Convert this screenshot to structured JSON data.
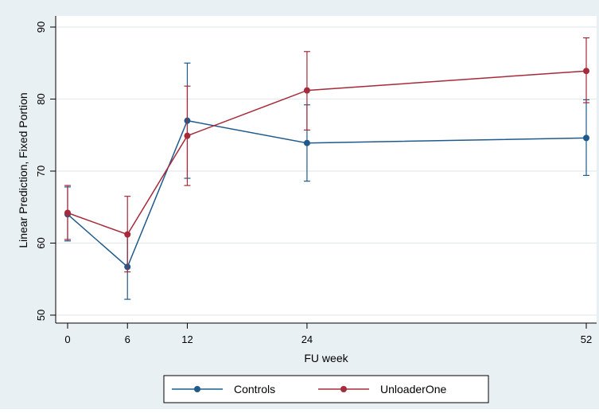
{
  "chart_data": {
    "type": "line",
    "title": "",
    "xlabel": "FU week",
    "ylabel": "Linear Prediction, Fixed Portion",
    "x": [
      0,
      6,
      12,
      24,
      52
    ],
    "x_ticks": [
      0,
      6,
      12,
      24,
      52
    ],
    "y_ticks": [
      50,
      60,
      70,
      80,
      90
    ],
    "xlim": [
      0,
      52
    ],
    "ylim": [
      50,
      90
    ],
    "grid": "horizontal",
    "legend_position": "bottom",
    "series": [
      {
        "name": "Controls",
        "color": "#1f5a8c",
        "values": [
          64.0,
          56.7,
          77.0,
          73.9,
          74.6
        ],
        "ci_low": [
          60.3,
          52.2,
          69.0,
          68.6,
          69.4
        ],
        "ci_high": [
          67.8,
          61.3,
          85.0,
          79.2,
          79.9
        ]
      },
      {
        "name": "UnloaderOne",
        "color": "#a52a3a",
        "values": [
          64.2,
          61.2,
          74.9,
          81.2,
          83.9
        ],
        "ci_low": [
          60.5,
          56.0,
          68.0,
          75.7,
          79.5
        ],
        "ci_high": [
          68.0,
          66.5,
          81.8,
          86.6,
          88.5
        ]
      }
    ]
  }
}
